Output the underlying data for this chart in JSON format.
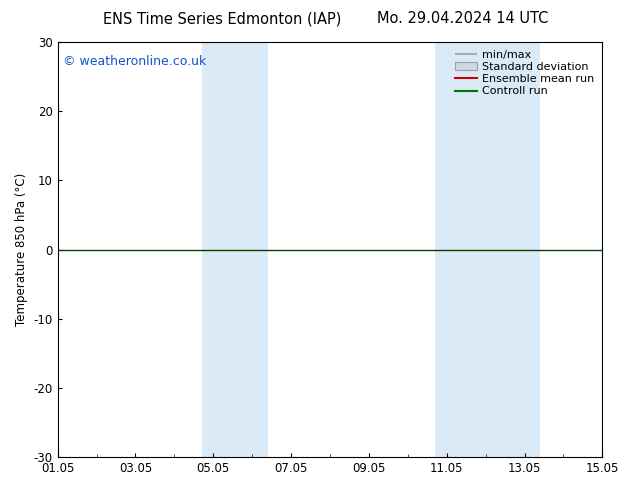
{
  "title_left": "ENS Time Series Edmonton (IAP)",
  "title_right": "Mo. 29.04.2024 14 UTC",
  "ylabel": "Temperature 850 hPa (°C)",
  "ylim": [
    -30,
    30
  ],
  "yticks": [
    -30,
    -20,
    -10,
    0,
    10,
    20,
    30
  ],
  "xlim": [
    0,
    14
  ],
  "xtick_positions": [
    0,
    2,
    4,
    6,
    8,
    10,
    12,
    14
  ],
  "xtick_labels": [
    "01.05",
    "03.05",
    "05.05",
    "07.05",
    "09.05",
    "11.05",
    "13.05",
    "15.05"
  ],
  "watermark": "© weatheronline.co.uk",
  "zero_line_y": 0,
  "shaded_bands": [
    {
      "x_start": 3.7,
      "x_end": 5.4
    },
    {
      "x_start": 9.7,
      "x_end": 12.4
    }
  ],
  "shaded_color": "#daeaf6",
  "legend_labels": [
    "min/max",
    "Standard deviation",
    "Ensemble mean run",
    "Controll run"
  ],
  "minmax_color": "#a0a0a0",
  "std_face_color": "#d0d8e0",
  "std_edge_color": "#a0a0a0",
  "ens_color": "#cc0000",
  "ctrl_color": "#007700",
  "zero_line_color": "#004400",
  "background_color": "#ffffff",
  "plot_bg_color": "#ffffff",
  "title_fontsize": 10.5,
  "axis_fontsize": 8.5,
  "legend_fontsize": 8,
  "watermark_fontsize": 9,
  "spine_color": "#000000"
}
